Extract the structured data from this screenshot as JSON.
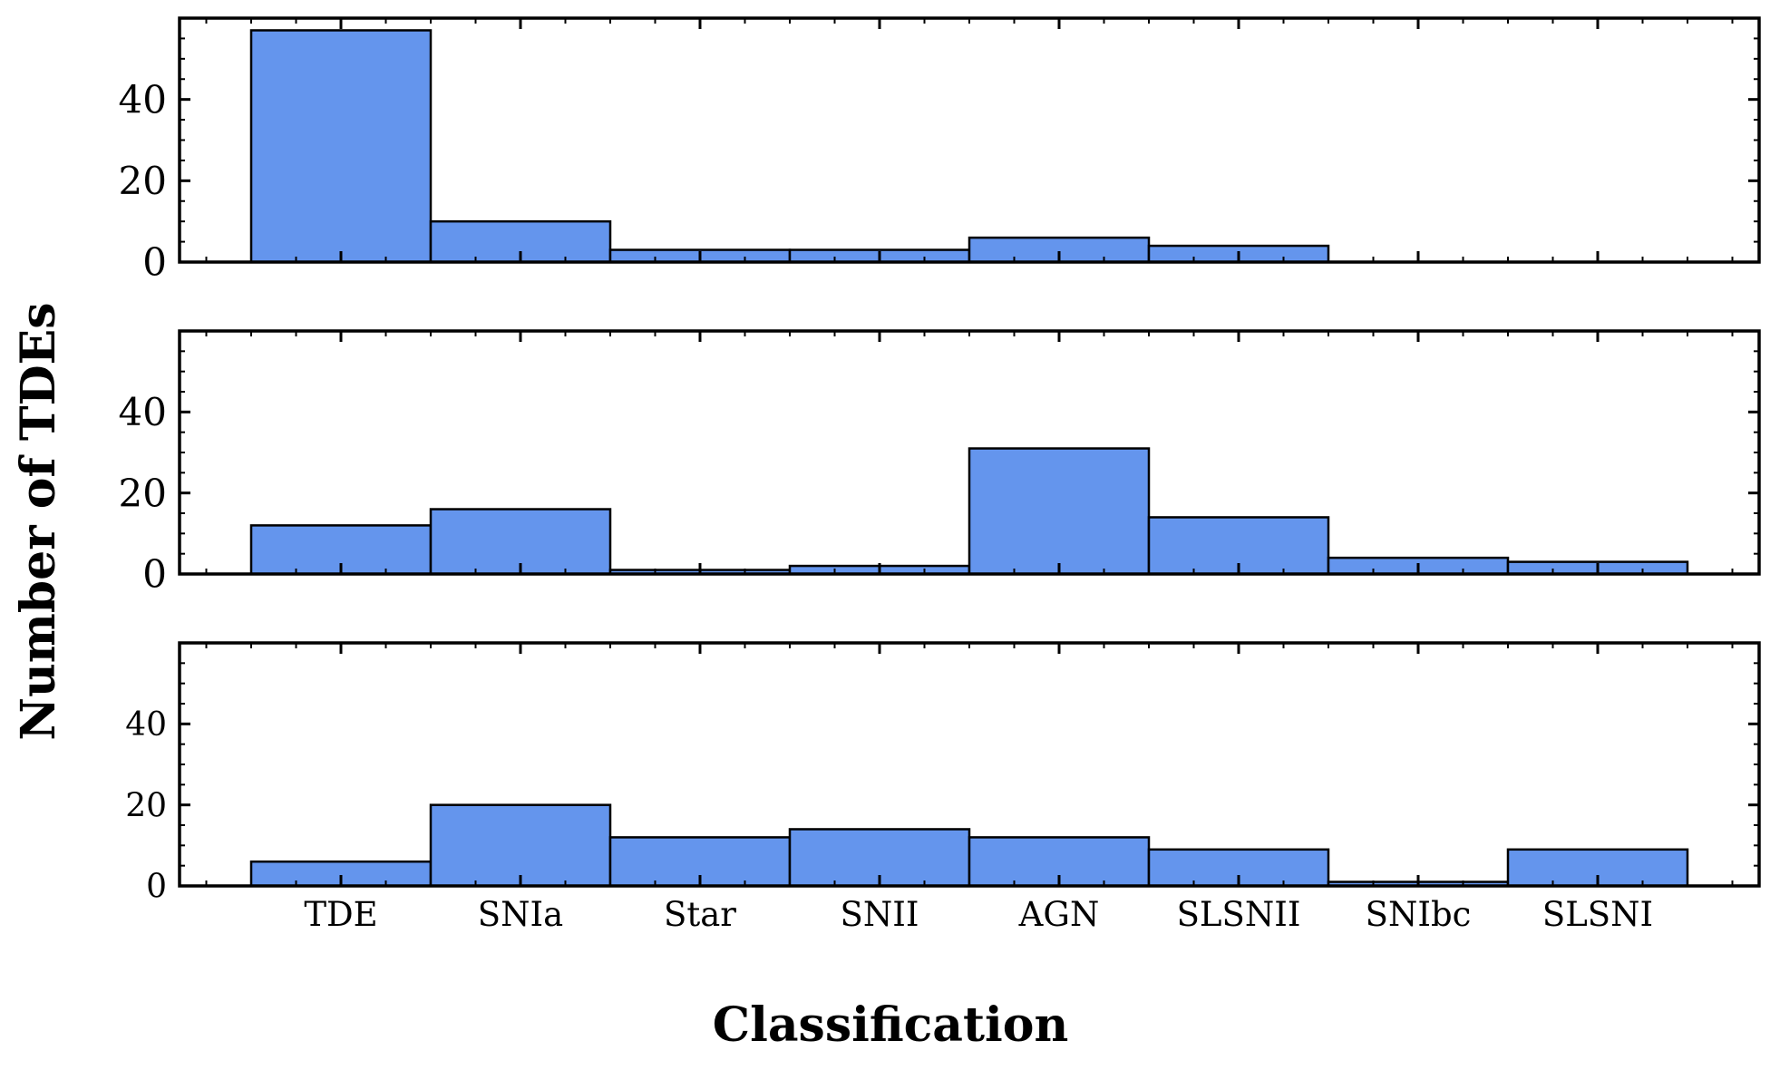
{
  "chart_data": {
    "type": "bar",
    "layout": "3 stacked panels sharing x axis",
    "xlabel": "Classification",
    "ylabel": "Number of TDEs",
    "categories": [
      "TDE",
      "SNIa",
      "Star",
      "SNII",
      "AGN",
      "SLSNII",
      "SNIbc",
      "SLSNI"
    ],
    "ylim": [
      0,
      60
    ],
    "yticks": [
      0,
      20,
      40
    ],
    "grid": false,
    "bar_color": "#6495ED",
    "edge_color": "#000000",
    "panels": [
      {
        "values": [
          57,
          10,
          3,
          3,
          6,
          4,
          0,
          0
        ]
      },
      {
        "values": [
          12,
          16,
          1,
          2,
          31,
          14,
          4,
          3
        ]
      },
      {
        "values": [
          6,
          20,
          12,
          14,
          12,
          9,
          1,
          9
        ]
      }
    ]
  }
}
